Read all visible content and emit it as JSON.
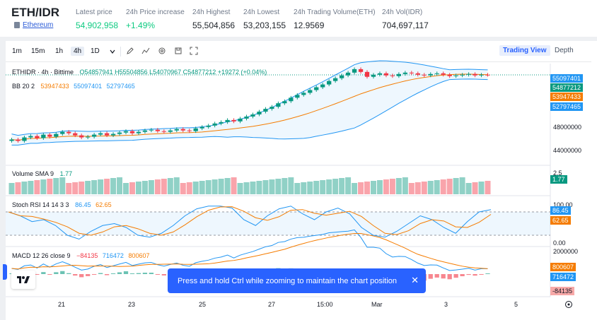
{
  "ticker": {
    "pair": "ETH/IDR",
    "coin_link": "Ethereum",
    "stats": [
      {
        "label": "Latest price",
        "value": "54,902,958",
        "green": true
      },
      {
        "label": "24h Price increase",
        "value": "+1.49%",
        "green": true
      },
      {
        "label": "24h Highest",
        "value": "55,504,856",
        "green": false
      },
      {
        "label": "24h Lowest",
        "value": "53,203,155",
        "green": false
      },
      {
        "label": "24h Trading Volume(ETH)",
        "value": "12.9569",
        "green": false
      },
      {
        "label": "24h Vol(IDR)",
        "value": "704,697,117",
        "green": false
      }
    ]
  },
  "toolbar": {
    "timeframes": [
      "1m",
      "15m",
      "1h",
      "4h",
      "1D"
    ],
    "active_timeframe": "4h",
    "dropdown_icon": "chevron-down-icon",
    "tools": [
      "pencil-icon",
      "indicator-icon",
      "settings-icon",
      "save-icon",
      "fullscreen-icon"
    ],
    "trading_view_label": "Trading View",
    "depth_label": "Depth"
  },
  "main_legend": {
    "title": "ETHIDR · 4h · Bittime",
    "ohlc": "O54857941 H55504856 L54070967 C54877212 +19272 (+0.04%)",
    "bb_label": "BB 20 2",
    "bb_mid": "53947433",
    "bb_upper": "55097401",
    "bb_lower": "52797465"
  },
  "price_axis": {
    "ticks": [
      "48000000",
      "44000000"
    ],
    "tags": [
      {
        "value": "55097401",
        "color": "#2196f3"
      },
      {
        "value": "54877212",
        "color": "#089981"
      },
      {
        "value": "53947433",
        "color": "#f57c00"
      },
      {
        "value": "52797465",
        "color": "#2196f3"
      }
    ]
  },
  "volume": {
    "label": "Volume SMA 9",
    "value": "1.77",
    "axis_tick": "2.5",
    "tag": "1.77"
  },
  "stoch_rsi": {
    "label": "Stoch RSI 14 14 3 3",
    "k": "86.45",
    "d": "62.65",
    "axis_ticks": [
      "100.00",
      "0.00"
    ]
  },
  "macd": {
    "label": "MACD 12 26 close 9",
    "hist": "−84135",
    "macd": "716472",
    "signal": "800607",
    "axis_tick": "2000000",
    "tags": [
      {
        "value": "800607",
        "color": "#f57c00"
      },
      {
        "value": "716472",
        "color": "#2196f3"
      },
      {
        "value": "-84135",
        "color": "#f7a9a8"
      }
    ]
  },
  "time_axis": [
    "21",
    "23",
    "25",
    "27",
    "15:00",
    "Mar",
    "3",
    "5"
  ],
  "toast": {
    "message": "Press and hold Ctrl while zooming to maintain the chart position",
    "close": "✕"
  },
  "chart_data": {
    "type": "candlestick",
    "title": "ETHIDR · 4h · Bittime",
    "close_series": [
      45.6,
      45.4,
      45.9,
      46.1,
      45.8,
      46.3,
      46.0,
      46.4,
      46.7,
      46.5,
      46.2,
      45.9,
      46.0,
      46.3,
      46.5,
      46.2,
      46.4,
      46.6,
      46.8,
      46.5,
      46.7,
      46.9,
      47.0,
      46.8,
      46.7,
      46.9,
      47.1,
      46.9,
      46.8,
      47.2,
      47.4,
      47.6,
      47.9,
      48.1,
      48.4,
      48.2,
      48.6,
      48.9,
      49.2,
      49.6,
      50.0,
      50.3,
      50.8,
      51.1,
      51.6,
      52.0,
      52.3,
      52.7,
      53.1,
      53.5,
      54.0,
      54.4,
      54.8,
      55.2,
      55.7,
      55.3,
      54.6,
      54.9,
      55.1,
      54.8,
      54.7,
      55.0,
      55.2,
      55.1,
      54.9,
      54.8,
      55.0,
      55.1,
      54.9,
      54.7,
      54.8,
      54.9,
      55.0,
      54.8,
      54.9,
      54.88
    ],
    "units": "millions IDR",
    "ylim_millions": [
      42,
      56.5
    ]
  }
}
